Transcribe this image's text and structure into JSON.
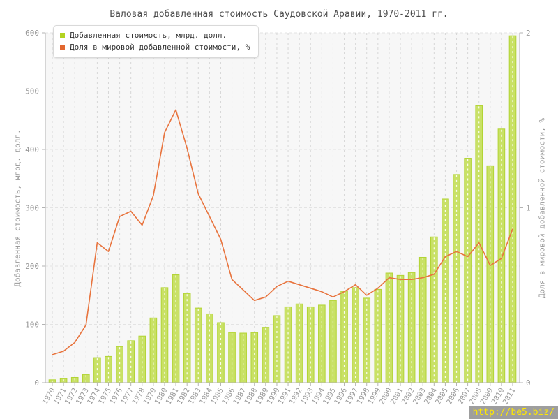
{
  "title": "Валовая добавленная стоимость Саудовской Аравии, 1970-2011 гг.",
  "watermark": "http://be5.biz/",
  "legend": [
    {
      "label": "Добавленная стоимость, млрд. долл.",
      "color": "#b3d321"
    },
    {
      "label": "Доля в мировой добавленной стоимости, %",
      "color": "#e2672f"
    }
  ],
  "chart_data": {
    "type": "bar+line",
    "title": "Валовая добавленная стоимость Саудовской Аравии, 1970-2011 гг.",
    "grid": true,
    "legend_position": "top-left",
    "categories": [
      1970,
      1971,
      1972,
      1973,
      1974,
      1975,
      1976,
      1977,
      1978,
      1979,
      1980,
      1981,
      1982,
      1983,
      1984,
      1985,
      1986,
      1987,
      1988,
      1989,
      1990,
      1991,
      1992,
      1993,
      1994,
      1995,
      1996,
      1997,
      1998,
      1999,
      2000,
      2001,
      2002,
      2003,
      2004,
      2005,
      2006,
      2007,
      2008,
      2009,
      2010,
      2011
    ],
    "left_axis": {
      "label": "Добавленная стоимость, млрд. долл.",
      "min": 0,
      "max": 600,
      "ticks": [
        0,
        100,
        200,
        300,
        400,
        500,
        600
      ]
    },
    "right_axis": {
      "label": "Доля в мировой добавленной стоимости, %",
      "min": 0,
      "max": 2,
      "ticks": [
        0,
        1,
        2
      ]
    },
    "series": [
      {
        "name": "Добавленная стоимость, млрд. долл.",
        "type": "bar",
        "axis": "left",
        "color": "#b2d434",
        "fill": "#c9e166",
        "values": [
          5,
          7,
          9,
          14,
          43,
          45,
          62,
          72,
          80,
          111,
          163,
          185,
          153,
          128,
          118,
          103,
          86,
          85,
          86,
          95,
          115,
          130,
          135,
          130,
          133,
          141,
          157,
          163,
          145,
          160,
          188,
          184,
          189,
          215,
          250,
          315,
          357,
          385,
          475,
          372,
          435,
          595
        ]
      },
      {
        "name": "Доля в мировой добавленной стоимости, %",
        "type": "line",
        "axis": "right",
        "color": "#e8743e",
        "values": [
          0.16,
          0.18,
          0.23,
          0.33,
          0.8,
          0.75,
          0.95,
          0.98,
          0.9,
          1.07,
          1.43,
          1.56,
          1.34,
          1.08,
          0.95,
          0.82,
          0.59,
          0.53,
          0.47,
          0.49,
          0.55,
          0.58,
          0.56,
          0.54,
          0.52,
          0.49,
          0.52,
          0.56,
          0.5,
          0.54,
          0.6,
          0.59,
          0.59,
          0.6,
          0.62,
          0.72,
          0.75,
          0.72,
          0.8,
          0.67,
          0.71,
          0.88
        ]
      }
    ]
  }
}
